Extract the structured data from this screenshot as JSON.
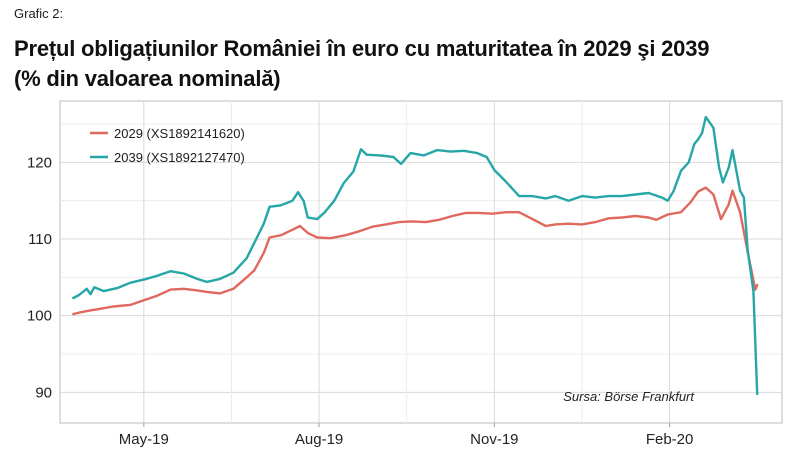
{
  "figure": {
    "label": "Grafic 2:",
    "title_line1": "Prețul obligațiunilor României în euro cu maturitatea în 2029 şi 2039",
    "title_line2": "(% din valoarea nominală)",
    "source": "Sursa: Börse Frankfurt"
  },
  "chart_data": {
    "type": "line",
    "ylim": [
      86,
      128
    ],
    "yticks": [
      90,
      100,
      110,
      120
    ],
    "xlim": [
      "2019-03-18",
      "2020-03-31"
    ],
    "xticks": [
      {
        "date": "2019-05-01",
        "label": "May-19"
      },
      {
        "date": "2019-08-01",
        "label": "Aug-19"
      },
      {
        "date": "2019-11-01",
        "label": "Nov-19"
      },
      {
        "date": "2020-02-01",
        "label": "Feb-20"
      }
    ],
    "legend_position": "top-left",
    "grid": true,
    "series": [
      {
        "name": "2029 (XS1892141620)",
        "color": "#e0695f",
        "points": [
          [
            "2019-03-25",
            100.2
          ],
          [
            "2019-03-28",
            100.4
          ],
          [
            "2019-04-01",
            100.6
          ],
          [
            "2019-04-08",
            100.9
          ],
          [
            "2019-04-15",
            101.2
          ],
          [
            "2019-04-24",
            101.4
          ],
          [
            "2019-05-01",
            102.0
          ],
          [
            "2019-05-08",
            102.6
          ],
          [
            "2019-05-15",
            103.4
          ],
          [
            "2019-05-22",
            103.5
          ],
          [
            "2019-05-29",
            103.3
          ],
          [
            "2019-06-03",
            103.1
          ],
          [
            "2019-06-10",
            102.9
          ],
          [
            "2019-06-17",
            103.5
          ],
          [
            "2019-06-24",
            105.0
          ],
          [
            "2019-06-28",
            105.9
          ],
          [
            "2019-07-03",
            108.2
          ],
          [
            "2019-07-06",
            110.2
          ],
          [
            "2019-07-12",
            110.5
          ],
          [
            "2019-07-18",
            111.2
          ],
          [
            "2019-07-22",
            111.7
          ],
          [
            "2019-07-26",
            110.8
          ],
          [
            "2019-07-31",
            110.2
          ],
          [
            "2019-08-07",
            110.1
          ],
          [
            "2019-08-15",
            110.5
          ],
          [
            "2019-08-22",
            111.0
          ],
          [
            "2019-08-29",
            111.6
          ],
          [
            "2019-09-05",
            111.9
          ],
          [
            "2019-09-12",
            112.2
          ],
          [
            "2019-09-19",
            112.3
          ],
          [
            "2019-09-26",
            112.2
          ],
          [
            "2019-10-03",
            112.5
          ],
          [
            "2019-10-10",
            113.0
          ],
          [
            "2019-10-17",
            113.4
          ],
          [
            "2019-10-24",
            113.4
          ],
          [
            "2019-10-31",
            113.3
          ],
          [
            "2019-11-07",
            113.5
          ],
          [
            "2019-11-14",
            113.5
          ],
          [
            "2019-11-21",
            112.6
          ],
          [
            "2019-11-28",
            111.7
          ],
          [
            "2019-12-03",
            111.9
          ],
          [
            "2019-12-10",
            112.0
          ],
          [
            "2019-12-17",
            111.9
          ],
          [
            "2019-12-24",
            112.2
          ],
          [
            "2019-12-31",
            112.7
          ],
          [
            "2020-01-07",
            112.8
          ],
          [
            "2020-01-14",
            113.0
          ],
          [
            "2020-01-21",
            112.8
          ],
          [
            "2020-01-25",
            112.5
          ],
          [
            "2020-01-31",
            113.2
          ],
          [
            "2020-02-07",
            113.5
          ],
          [
            "2020-02-12",
            114.8
          ],
          [
            "2020-02-16",
            116.2
          ],
          [
            "2020-02-20",
            116.7
          ],
          [
            "2020-02-24",
            115.8
          ],
          [
            "2020-02-28",
            112.6
          ],
          [
            "2020-03-03",
            114.5
          ],
          [
            "2020-03-05",
            116.3
          ],
          [
            "2020-03-09",
            113.5
          ],
          [
            "2020-03-11",
            110.9
          ],
          [
            "2020-03-13",
            108.3
          ],
          [
            "2020-03-17",
            103.4
          ],
          [
            "2020-03-18",
            104.0
          ]
        ]
      },
      {
        "name": "2039 (XS1892127470)",
        "color": "#27a6a7",
        "points": [
          [
            "2019-03-25",
            102.3
          ],
          [
            "2019-03-28",
            102.7
          ],
          [
            "2019-04-01",
            103.5
          ],
          [
            "2019-04-03",
            102.8
          ],
          [
            "2019-04-05",
            103.7
          ],
          [
            "2019-04-10",
            103.2
          ],
          [
            "2019-04-17",
            103.6
          ],
          [
            "2019-04-24",
            104.3
          ],
          [
            "2019-05-01",
            104.7
          ],
          [
            "2019-05-08",
            105.2
          ],
          [
            "2019-05-15",
            105.8
          ],
          [
            "2019-05-22",
            105.5
          ],
          [
            "2019-05-29",
            104.8
          ],
          [
            "2019-06-03",
            104.4
          ],
          [
            "2019-06-10",
            104.8
          ],
          [
            "2019-06-17",
            105.6
          ],
          [
            "2019-06-24",
            107.5
          ],
          [
            "2019-06-28",
            109.5
          ],
          [
            "2019-07-03",
            112.0
          ],
          [
            "2019-07-06",
            114.2
          ],
          [
            "2019-07-12",
            114.4
          ],
          [
            "2019-07-18",
            115.0
          ],
          [
            "2019-07-21",
            116.1
          ],
          [
            "2019-07-24",
            114.9
          ],
          [
            "2019-07-26",
            112.8
          ],
          [
            "2019-07-31",
            112.6
          ],
          [
            "2019-08-04",
            113.5
          ],
          [
            "2019-08-09",
            115.0
          ],
          [
            "2019-08-14",
            117.3
          ],
          [
            "2019-08-19",
            118.8
          ],
          [
            "2019-08-23",
            121.7
          ],
          [
            "2019-08-26",
            121.0
          ],
          [
            "2019-09-02",
            120.9
          ],
          [
            "2019-09-09",
            120.7
          ],
          [
            "2019-09-13",
            119.8
          ],
          [
            "2019-09-18",
            121.2
          ],
          [
            "2019-09-25",
            120.9
          ],
          [
            "2019-10-02",
            121.6
          ],
          [
            "2019-10-09",
            121.4
          ],
          [
            "2019-10-16",
            121.5
          ],
          [
            "2019-10-23",
            121.2
          ],
          [
            "2019-10-28",
            120.7
          ],
          [
            "2019-11-01",
            119.0
          ],
          [
            "2019-11-07",
            117.5
          ],
          [
            "2019-11-14",
            115.6
          ],
          [
            "2019-11-21",
            115.6
          ],
          [
            "2019-11-28",
            115.3
          ],
          [
            "2019-12-03",
            115.6
          ],
          [
            "2019-12-10",
            115.0
          ],
          [
            "2019-12-17",
            115.6
          ],
          [
            "2019-12-24",
            115.4
          ],
          [
            "2019-12-31",
            115.6
          ],
          [
            "2020-01-07",
            115.6
          ],
          [
            "2020-01-14",
            115.8
          ],
          [
            "2020-01-21",
            116.0
          ],
          [
            "2020-01-28",
            115.4
          ],
          [
            "2020-01-31",
            115.0
          ],
          [
            "2020-02-03",
            116.2
          ],
          [
            "2020-02-07",
            118.9
          ],
          [
            "2020-02-11",
            120.0
          ],
          [
            "2020-02-14",
            122.4
          ],
          [
            "2020-02-16",
            123.0
          ],
          [
            "2020-02-18",
            123.8
          ],
          [
            "2020-02-20",
            125.9
          ],
          [
            "2020-02-24",
            124.5
          ],
          [
            "2020-02-27",
            119.3
          ],
          [
            "2020-02-29",
            117.4
          ],
          [
            "2020-03-03",
            119.3
          ],
          [
            "2020-03-05",
            121.6
          ],
          [
            "2020-03-09",
            116.3
          ],
          [
            "2020-03-11",
            115.4
          ],
          [
            "2020-03-13",
            108.5
          ],
          [
            "2020-03-16",
            103.2
          ],
          [
            "2020-03-17",
            96.5
          ],
          [
            "2020-03-18",
            89.8
          ]
        ]
      }
    ]
  }
}
